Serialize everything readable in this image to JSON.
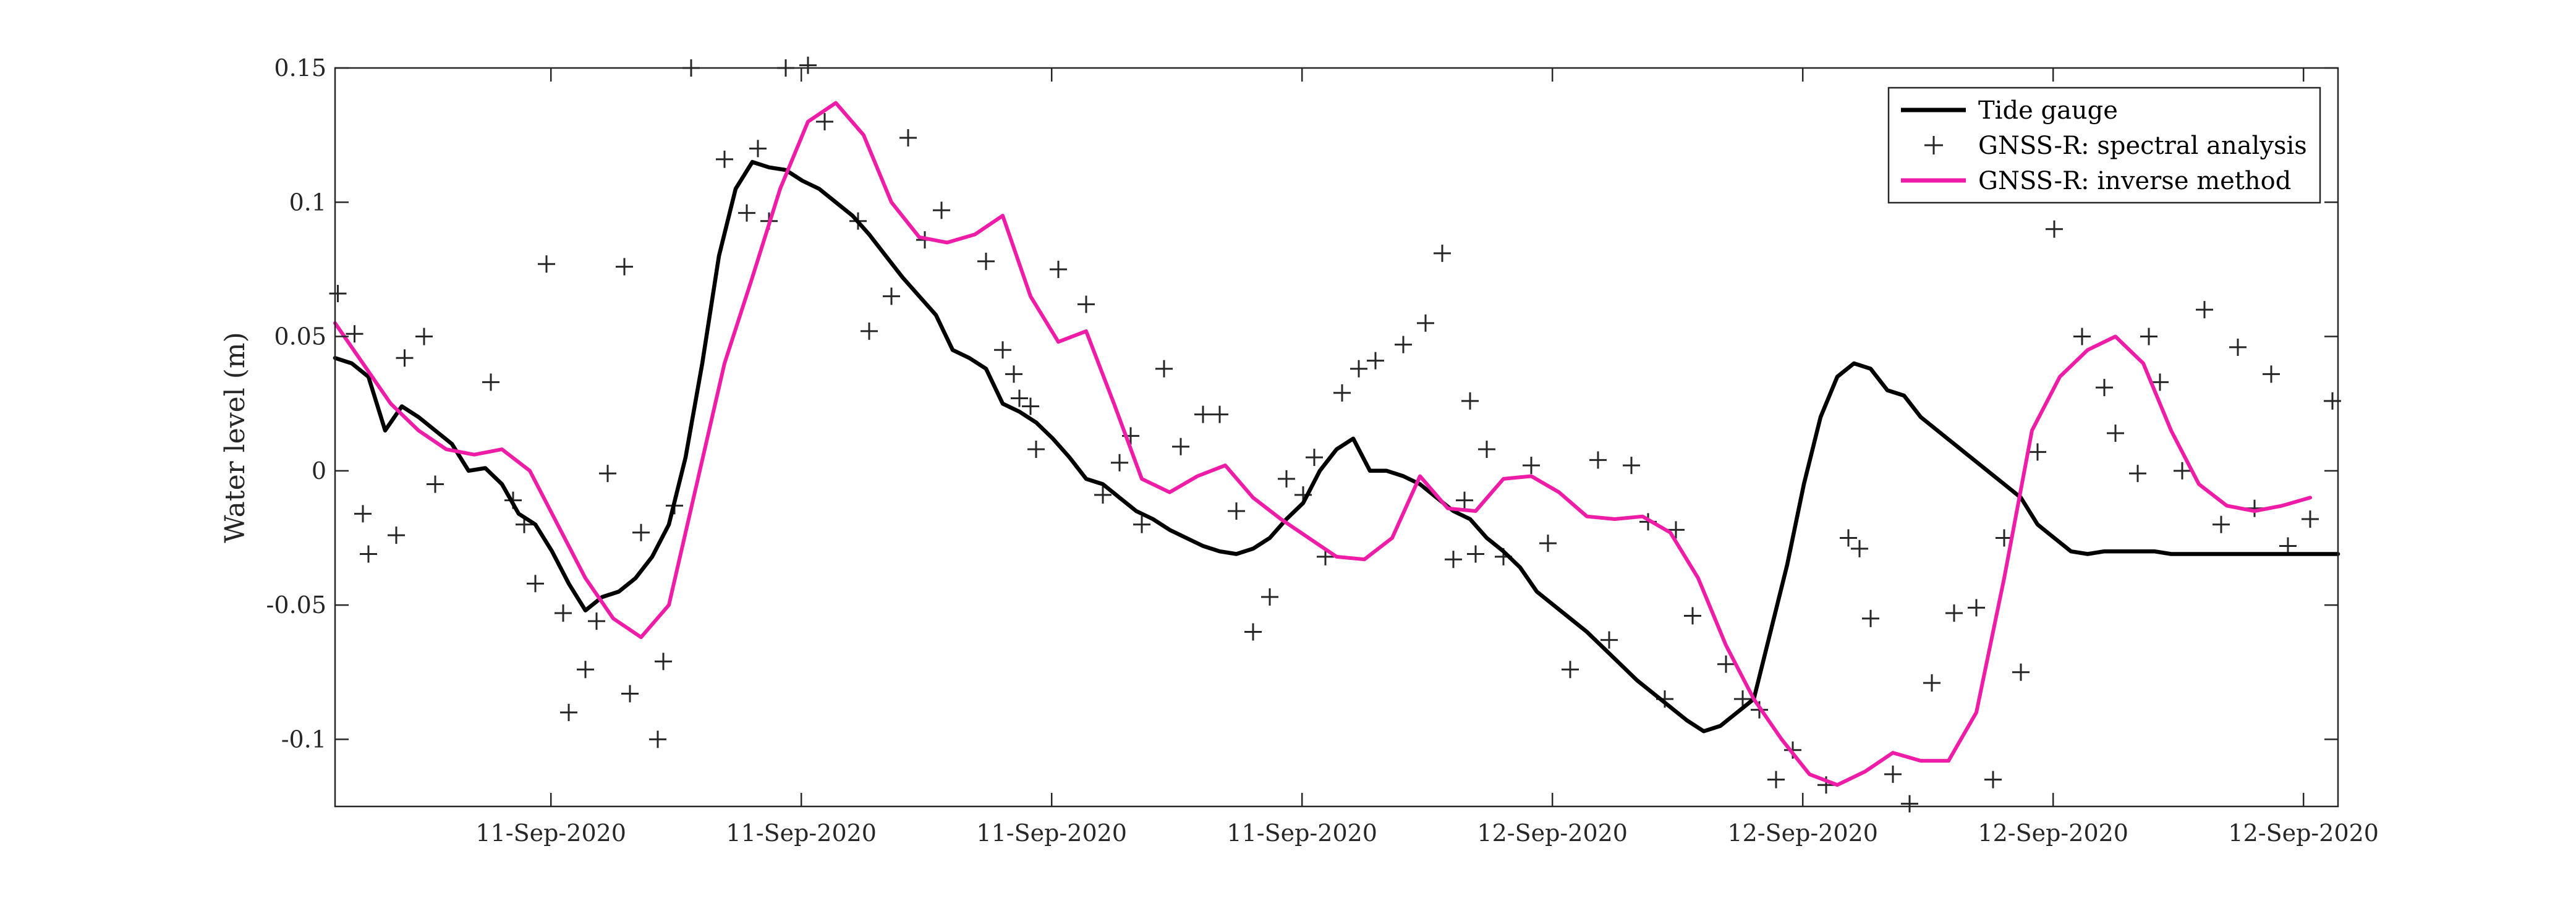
{
  "colors": {
    "tide_gauge": "#000000",
    "spectral": "#262626",
    "inverse": "#ee1ca7",
    "axis": "#262626"
  },
  "chart_data": {
    "type": "line",
    "ylabel": "Water level (m)",
    "xlabel": "",
    "ylim": [
      -0.125,
      0.15
    ],
    "yticks": [
      -0.1,
      -0.05,
      0,
      0.05,
      0.1,
      0.15
    ],
    "ytick_labels": [
      "-0.1",
      "-0.05",
      "0",
      "0.05",
      "0.1",
      "0.15"
    ],
    "xlim_hours": [
      0,
      36
    ],
    "xtick_hours": [
      3.88,
      8.38,
      12.88,
      17.38,
      21.88,
      26.38,
      30.88,
      35.38
    ],
    "xtick_labels": [
      "11-Sep-2020",
      "11-Sep-2020",
      "11-Sep-2020",
      "11-Sep-2020",
      "12-Sep-2020",
      "12-Sep-2020",
      "12-Sep-2020",
      "12-Sep-2020"
    ],
    "grid": false,
    "legend": "top-right",
    "series": [
      {
        "name": "Tide gauge",
        "style": "line",
        "x": [
          0,
          0.3,
          0.6,
          0.9,
          1.2,
          1.5,
          1.8,
          2.1,
          2.4,
          2.7,
          3.0,
          3.3,
          3.6,
          3.9,
          4.2,
          4.5,
          4.8,
          5.1,
          5.4,
          5.7,
          6.0,
          6.3,
          6.6,
          6.9,
          7.2,
          7.5,
          7.8,
          8.1,
          8.4,
          8.7,
          9.0,
          9.3,
          9.6,
          9.9,
          10.2,
          10.5,
          10.8,
          11.1,
          11.4,
          11.7,
          12.0,
          12.3,
          12.6,
          12.9,
          13.2,
          13.5,
          13.8,
          14.1,
          14.4,
          14.7,
          15.0,
          15.3,
          15.6,
          15.9,
          16.2,
          16.5,
          16.8,
          17.1,
          17.4,
          17.7,
          18.0,
          18.3,
          18.6,
          18.9,
          19.2,
          19.5,
          19.8,
          20.1,
          20.4,
          20.7,
          21.0,
          21.3,
          21.6,
          21.9,
          22.2,
          22.5,
          22.8,
          23.1,
          23.4,
          23.7,
          24.0,
          24.3,
          24.6,
          24.9,
          25.2,
          25.5,
          25.8,
          26.1,
          26.4,
          26.7,
          27.0,
          27.3,
          27.6,
          27.9,
          28.2,
          28.5,
          28.8,
          29.1,
          29.4,
          29.7,
          30.0,
          30.3,
          30.6,
          30.9,
          31.2,
          31.5,
          31.8,
          32.1,
          32.4,
          32.7,
          33.0,
          33.3,
          33.6,
          33.9,
          34.2,
          34.5,
          34.8,
          35.1,
          35.4,
          35.7,
          36.0
        ],
        "values": [
          0.042,
          0.04,
          0.035,
          0.015,
          0.024,
          0.02,
          0.015,
          0.01,
          0.0,
          0.001,
          -0.005,
          -0.016,
          -0.02,
          -0.03,
          -0.042,
          -0.052,
          -0.047,
          -0.045,
          -0.04,
          -0.032,
          -0.02,
          0.005,
          0.04,
          0.08,
          0.105,
          0.115,
          0.113,
          0.112,
          0.108,
          0.105,
          0.1,
          0.095,
          0.088,
          0.08,
          0.072,
          0.065,
          0.058,
          0.045,
          0.042,
          0.038,
          0.025,
          0.022,
          0.018,
          0.012,
          0.005,
          -0.003,
          -0.005,
          -0.01,
          -0.015,
          -0.018,
          -0.022,
          -0.025,
          -0.028,
          -0.03,
          -0.031,
          -0.029,
          -0.025,
          -0.018,
          -0.012,
          0.0,
          0.008,
          0.012,
          0.0,
          0.0,
          -0.002,
          -0.005,
          -0.01,
          -0.015,
          -0.018,
          -0.025,
          -0.03,
          -0.036,
          -0.045,
          -0.05,
          -0.055,
          -0.06,
          -0.066,
          -0.072,
          -0.078,
          -0.083,
          -0.088,
          -0.093,
          -0.097,
          -0.095,
          -0.09,
          -0.085,
          -0.06,
          -0.035,
          -0.005,
          0.02,
          0.035,
          0.04,
          0.038,
          0.03,
          0.028,
          0.02,
          0.015,
          0.01,
          0.005,
          0.0,
          -0.005,
          -0.01,
          -0.02,
          -0.025,
          -0.03,
          -0.031,
          -0.03,
          -0.03,
          -0.03,
          -0.03,
          -0.031,
          -0.031,
          -0.031,
          -0.031,
          -0.031,
          -0.031,
          -0.031,
          -0.031,
          -0.031,
          -0.031,
          -0.031
        ]
      },
      {
        "name": "GNSS-R: spectral analysis",
        "style": "marker",
        "x": [
          0.05,
          0.35,
          0.5,
          0.6,
          1.1,
          1.25,
          1.6,
          1.8,
          2.8,
          3.2,
          3.4,
          3.6,
          3.8,
          4.1,
          4.2,
          4.5,
          4.7,
          4.9,
          5.2,
          5.3,
          5.5,
          5.8,
          5.9,
          6.1,
          6.4,
          7.0,
          7.4,
          7.6,
          7.8,
          8.1,
          8.5,
          8.8,
          9.4,
          9.6,
          10.0,
          10.3,
          10.6,
          10.9,
          11.7,
          12.0,
          12.2,
          12.3,
          12.5,
          12.6,
          13.0,
          13.5,
          13.8,
          14.1,
          14.3,
          14.5,
          14.9,
          15.2,
          15.6,
          15.9,
          16.2,
          16.5,
          16.8,
          17.1,
          17.4,
          17.6,
          17.8,
          18.1,
          18.4,
          18.7,
          19.2,
          19.6,
          19.9,
          20.1,
          20.3,
          20.4,
          20.5,
          20.7,
          21.0,
          21.5,
          21.8,
          22.2,
          22.7,
          22.9,
          23.3,
          23.6,
          23.9,
          24.1,
          24.4,
          25.0,
          25.3,
          25.6,
          25.9,
          26.2,
          26.8,
          27.2,
          27.4,
          27.6,
          28.0,
          28.3,
          28.7,
          29.1,
          29.5,
          29.8,
          30.0,
          30.3,
          30.6,
          30.9,
          31.4,
          31.8,
          32.0,
          32.4,
          32.6,
          32.8,
          33.2,
          33.6,
          33.9,
          34.2,
          34.5,
          34.8,
          35.1,
          35.5,
          35.9
        ],
        "values": [
          0.066,
          0.051,
          -0.016,
          -0.031,
          -0.024,
          0.042,
          0.05,
          -0.005,
          0.033,
          -0.011,
          -0.02,
          -0.042,
          0.077,
          -0.053,
          -0.09,
          -0.074,
          -0.056,
          -0.001,
          0.076,
          -0.083,
          -0.023,
          -0.1,
          -0.071,
          -0.013,
          0.15,
          0.116,
          0.096,
          0.12,
          0.093,
          0.15,
          0.151,
          0.13,
          0.093,
          0.052,
          0.065,
          0.124,
          0.086,
          0.097,
          0.078,
          0.045,
          0.036,
          0.027,
          0.024,
          0.008,
          0.075,
          0.062,
          -0.009,
          0.003,
          0.013,
          -0.02,
          0.038,
          0.009,
          0.021,
          0.021,
          -0.015,
          -0.06,
          -0.047,
          -0.003,
          -0.009,
          0.005,
          -0.032,
          0.029,
          0.038,
          0.041,
          0.047,
          0.055,
          0.081,
          -0.033,
          -0.011,
          0.026,
          -0.031,
          0.008,
          -0.032,
          0.002,
          -0.027,
          -0.074,
          0.004,
          -0.063,
          0.002,
          -0.019,
          -0.085,
          -0.022,
          -0.054,
          -0.072,
          -0.085,
          -0.089,
          -0.115,
          -0.104,
          -0.117,
          -0.025,
          -0.029,
          -0.055,
          -0.113,
          -0.124,
          -0.079,
          -0.053,
          -0.051,
          -0.115,
          -0.025,
          -0.075,
          0.007,
          0.09,
          0.05,
          0.031,
          0.014,
          -0.001,
          0.05,
          0.033,
          0.0,
          0.06,
          -0.02,
          0.046,
          -0.014,
          0.036,
          -0.028,
          -0.018,
          0.026
        ]
      },
      {
        "name": "GNSS-R: inverse method",
        "style": "line",
        "x": [
          0,
          0.5,
          1.0,
          1.5,
          2.0,
          2.5,
          3.0,
          3.5,
          4.0,
          4.5,
          5.0,
          5.5,
          6.0,
          6.5,
          7.0,
          7.5,
          8.0,
          8.5,
          9.0,
          9.5,
          10.0,
          10.5,
          11.0,
          11.5,
          12.0,
          12.5,
          13.0,
          13.5,
          14.0,
          14.5,
          15.0,
          15.5,
          16.0,
          16.5,
          17.0,
          17.5,
          18.0,
          18.5,
          19.0,
          19.5,
          20.0,
          20.5,
          21.0,
          21.5,
          22.0,
          22.5,
          23.0,
          23.5,
          24.0,
          24.5,
          25.0,
          25.5,
          26.0,
          26.5,
          27.0,
          27.5,
          28.0,
          28.5,
          29.0,
          29.5,
          30.0,
          30.5,
          31.0,
          31.5,
          32.0,
          32.5,
          33.0,
          33.5,
          34.0,
          34.5,
          35.0,
          35.5
        ],
        "values": [
          0.055,
          0.04,
          0.025,
          0.015,
          0.008,
          0.006,
          0.008,
          0.0,
          -0.02,
          -0.04,
          -0.055,
          -0.062,
          -0.05,
          -0.005,
          0.04,
          0.072,
          0.105,
          0.13,
          0.137,
          0.125,
          0.1,
          0.087,
          0.085,
          0.088,
          0.095,
          0.065,
          0.048,
          0.052,
          0.025,
          -0.003,
          -0.008,
          -0.002,
          0.002,
          -0.01,
          -0.018,
          -0.025,
          -0.032,
          -0.033,
          -0.025,
          -0.002,
          -0.014,
          -0.015,
          -0.003,
          -0.002,
          -0.008,
          -0.017,
          -0.018,
          -0.017,
          -0.023,
          -0.04,
          -0.065,
          -0.085,
          -0.1,
          -0.113,
          -0.117,
          -0.112,
          -0.105,
          -0.108,
          -0.108,
          -0.09,
          -0.04,
          0.015,
          0.035,
          0.045,
          0.05,
          0.04,
          0.015,
          -0.005,
          -0.013,
          -0.015,
          -0.013,
          -0.01
        ]
      }
    ]
  }
}
